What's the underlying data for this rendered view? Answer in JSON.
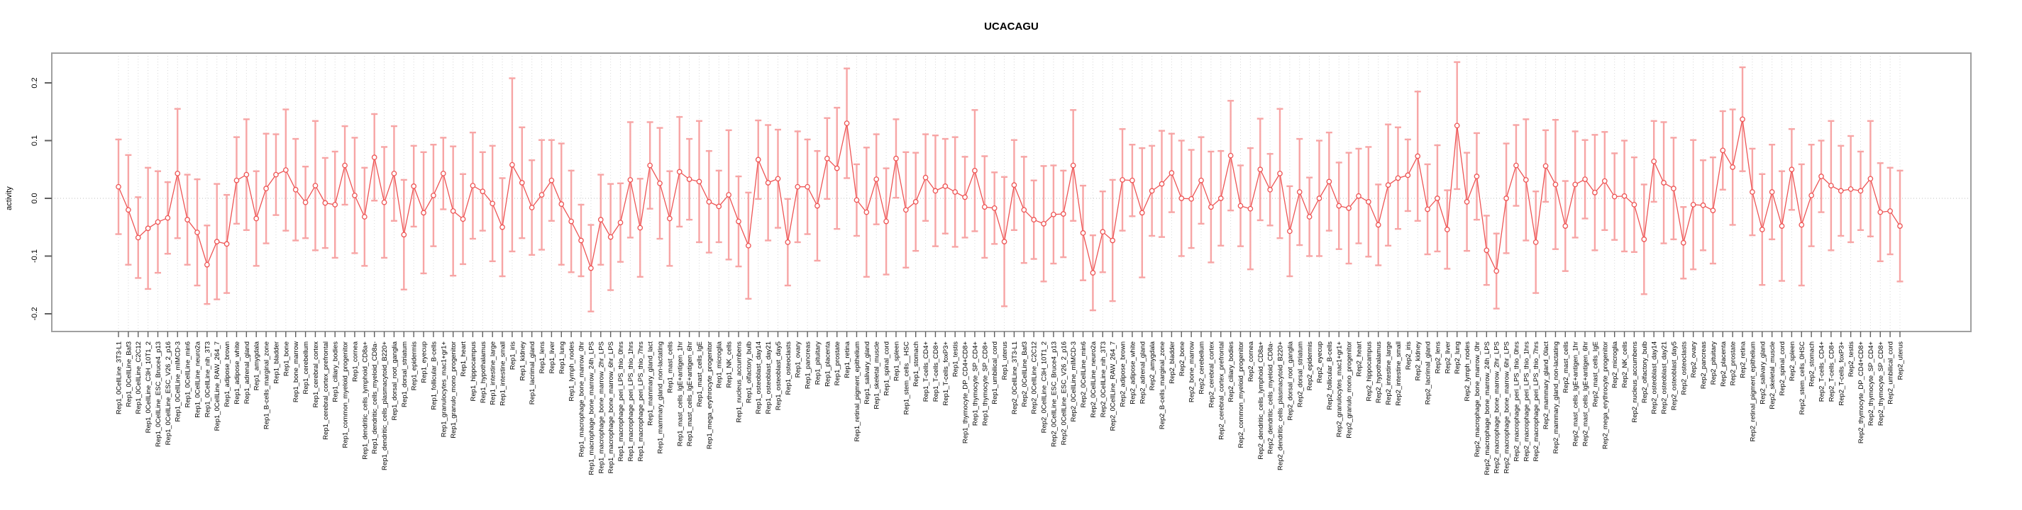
{
  "title": "UCACAGU",
  "ylabel": "activity",
  "colors": {
    "error_bar": "#f7a5a5",
    "mean_line": "#ee5454",
    "point_stroke": "#ee5454",
    "grid": "#d8d8d8",
    "zero_line": "#bdbdbd",
    "box_border": "#a0a0a0",
    "tick": "#606060",
    "label_text": "#000000",
    "title_text": "#000000",
    "background": "#ffffff"
  },
  "chart_data": {
    "type": "line",
    "subtype": "points-with-error-bars",
    "title": "UCACAGU",
    "xlabel": "",
    "ylabel": "activity",
    "ylim": [
      -0.25,
      0.25
    ],
    "yticks": [
      0.2,
      0.1,
      0.0,
      -0.1,
      -0.2
    ],
    "grid": "vertical dotted gridline per category; dotted horizontal line at 0",
    "legend_position": "none",
    "categories": [
      "Rep1_0CellLine_3T3-L1",
      "Rep1_0CellLine_Baf3",
      "Rep1_0CellLine_C2C12",
      "Rep1_0CellLine_C3H_10T1_2",
      "Rep1_0CellLine_ESC_Bruce4_p13",
      "Rep1_0CellLine_ESC_V26_2_p16",
      "Rep1_0CellLine_mIMCD-3",
      "Rep1_0CellLine_min6",
      "Rep1_0CellLine_neuro2a",
      "Rep1_0CellLine_nih_3T3",
      "Rep1_0CellLine_RAW_264_7",
      "Rep1_adipose_brown",
      "Rep1_adipose_white",
      "Rep1_adrenal_gland",
      "Rep1_amygdala",
      "Rep1_B-cells_marginal_zone",
      "Rep1_bladder",
      "Rep1_bone",
      "Rep1_bone_marrow",
      "Rep1_cerebellum",
      "Rep1_cerebral_cortex",
      "Rep1_cerebral_cortex_prefrontal",
      "Rep1_ciliary_bodies",
      "Rep1_common_myeloid_progenitor",
      "Rep1_cornea",
      "Rep1_dendritic_cells_lymphoid_CD8a+",
      "Rep1_dendritic_cells_myeloid_CD8a-",
      "Rep1_dendritic_cells_plasmacytoid_B220+",
      "Rep1_dorsal_root_ganglia",
      "Rep1_dorsal_striatum",
      "Rep1_epidermis",
      "Rep1_eyecup",
      "Rep1_follicular_B-cells",
      "Rep1_granulocytes_mac1+gr1+",
      "Rep1_granulo_mono_progenitor",
      "Rep1_heart",
      "Rep1_hippocampus",
      "Rep1_hypothalamus",
      "Rep1_intestine_large",
      "Rep1_intestine_small",
      "Rep1_iris",
      "Rep1_kidney",
      "Rep1_lacrimal_gland",
      "Rep1_lens",
      "Rep1_liver",
      "Rep1_lung",
      "Rep1_lymph_nodes",
      "Rep1_macrophage_bone_marrow_0hr",
      "Rep1_macrophage_bone_marrow_24h_LPS",
      "Rep1_macrophage_bone_marrow_2hr_LPS",
      "Rep1_macrophage_bone_marrow_6hr_LPS",
      "Rep1_macrophage_peri_LPS_thio_0hrs",
      "Rep1_macrophage_peri_LPS_thio_1hrs",
      "Rep1_macrophage_peri_LPS_thio_7hrs",
      "Rep1_mammary_gland_lact",
      "Rep1_mammary_gland_non-lactating",
      "Rep1_mast_cells",
      "Rep1_mast_cells_IgE+antigen_1hr",
      "Rep1_mast_cells_IgE+antigen_6hr",
      "Rep1_mast_cells_IgE",
      "Rep1_mega_erythrocyte_progenitor",
      "Rep1_microglia",
      "Rep1_NK_cells",
      "Rep1_nucleus_accumbens",
      "Rep1_olfactory_bulb",
      "Rep1_osteoblast_day14",
      "Rep1_osteoblast_day21",
      "Rep1_osteoblast_day5",
      "Rep1_osteoclasts",
      "Rep1_ovary",
      "Rep1_pancreas",
      "Rep1_pituitary",
      "Rep1_placenta",
      "Rep1_prostate",
      "Rep1_retina",
      "Rep1_retinal_pigment_epithelium",
      "Rep1_salivary_gland",
      "Rep1_skeletal_muscle",
      "Rep1_spinal_cord",
      "Rep1_spleen",
      "Rep1_stem_cells__HSC",
      "Rep1_stomach",
      "Rep1_T-cells_CD4+",
      "Rep1_T-cells_CD8+",
      "Rep1_T-cells_foxP3+",
      "Rep1_testis",
      "Rep1_thymocyte_DP_CD4+CD8+",
      "Rep1_thymocyte_SP_CD4+",
      "Rep1_thymocyte_SP_CD8+",
      "Rep1_umbilical_cord",
      "Rep1_uterus",
      "Rep2_0CellLine_3T3-L1",
      "Rep2_0CellLine_Baf3",
      "Rep2_0CellLine_C2C12",
      "Rep2_0CellLine_C3H_10T1_2",
      "Rep2_0CellLine_ESC_Bruce4_p13",
      "Rep2_0CellLine_ESC_V26_2_p16",
      "Rep2_0CellLine_mIMCD-3",
      "Rep2_0CellLine_min6",
      "Rep2_0CellLine_neuro2a",
      "Rep2_0CellLine_nih_3T3",
      "Rep2_0CellLine_RAW_264_7",
      "Rep2_adipose_brown",
      "Rep2_adipose_white",
      "Rep2_adrenal_gland",
      "Rep2_amygdala",
      "Rep2_B-cells_marginal_zone",
      "Rep2_bladder",
      "Rep2_bone",
      "Rep2_bone_marrow",
      "Rep2_cerebellum",
      "Rep2_cerebral_cortex",
      "Rep2_cerebral_cortex_prefrontal",
      "Rep2_ciliary_bodies",
      "Rep2_common_myeloid_progenitor",
      "Rep2_cornea",
      "Rep2_dendritic_cells_lymphoid_CD8a+",
      "Rep2_dendritic_cells_myeloid_CD8a-",
      "Rep2_dendritic_cells_plasmacytoid_B220+",
      "Rep2_dorsal_root_ganglia",
      "Rep2_dorsal_striatum",
      "Rep2_epidermis",
      "Rep2_eyecup",
      "Rep2_follicular_B-cells",
      "Rep2_granulocytes_mac1+gr1+",
      "Rep2_granulo_mono_progenitor",
      "Rep2_heart",
      "Rep2_hippocampus",
      "Rep2_hypothalamus",
      "Rep2_intestine_large",
      "Rep2_intestine_small",
      "Rep2_iris",
      "Rep2_kidney",
      "Rep2_lacrimal_gland",
      "Rep2_lens",
      "Rep2_liver",
      "Rep2_lung",
      "Rep2_lymph_nodes",
      "Rep2_macrophage_bone_marrow_0hr",
      "Rep2_macrophage_bone_marrow_24h_LPS",
      "Rep2_macrophage_bone_marrow_2hr_LPS",
      "Rep2_macrophage_bone_marrow_6hr_LPS",
      "Rep2_macrophage_peri_LPS_thio_0hrs",
      "Rep2_macrophage_peri_LPS_thio_1hrs",
      "Rep2_macrophage_peri_LPS_thio_7hrs",
      "Rep2_mammary_gland_0lact",
      "Rep2_mammary_gland_non-lactating",
      "Rep2_mast_cells",
      "Rep2_mast_cells_IgE+antigen_1hr",
      "Rep2_mast_cells_IgE+antigen_6hr",
      "Rep2_mast_cells_IgE",
      "Rep2_mega_erythrocyte_progenitor",
      "Rep2_microglia",
      "Rep2_NK_cells",
      "Rep2_nucleus_accumbens",
      "Rep2_olfactory_bulb",
      "Rep2_osteoblast_day14",
      "Rep2_osteoblast_day21",
      "Rep2_osteoblast_day5",
      "Rep2_osteoclasts",
      "Rep2_ovary",
      "Rep2_pancreas",
      "Rep2_pituitary",
      "Rep2_placenta",
      "Rep2_prostate",
      "Rep2_retina",
      "Rep2_retinal_pigment_epithelium",
      "Rep2_salivary_gland",
      "Rep2_skeletal_muscle",
      "Rep2_spinal_cord",
      "Rep2_spleen",
      "Rep2_stem_cells_0HSC",
      "Rep2_stomach",
      "Rep2_T-cells_CD4+",
      "Rep2_T-cells_CD8+",
      "Rep2_T-cells_foxP3+",
      "Rep2_testis",
      "Rep2_thymocyte_DP_CD4+CD8+",
      "Rep2_thymocyte_SP_CD4+",
      "Rep2_thymocyte_SP_CD8+",
      "Rep2_umbilical_cord",
      "Rep2_uterus"
    ],
    "series": [
      {
        "name": "activity",
        "values": [
          0.02,
          -0.02,
          -0.068,
          -0.052,
          -0.041,
          -0.034,
          0.043,
          -0.037,
          -0.059,
          -0.115,
          -0.075,
          -0.079,
          0.031,
          0.041,
          -0.035,
          0.017,
          0.041,
          0.049,
          0.015,
          -0.007,
          0.022,
          -0.008,
          -0.011,
          0.057,
          0.005,
          -0.032,
          0.071,
          -0.007,
          0.043,
          -0.063,
          0.021,
          -0.025,
          0.005,
          0.043,
          -0.022,
          -0.036,
          0.022,
          0.012,
          -0.009,
          -0.05,
          0.058,
          0.027,
          -0.016,
          0.006,
          0.031,
          -0.01,
          -0.04,
          -0.073,
          -0.121,
          -0.037,
          -0.067,
          -0.042,
          0.032,
          -0.051,
          0.057,
          0.026,
          -0.035,
          0.046,
          0.033,
          0.029,
          -0.006,
          -0.014,
          0.006,
          -0.04,
          -0.082,
          0.067,
          0.027,
          0.034,
          -0.076,
          0.02,
          0.02,
          -0.013,
          0.069,
          0.052,
          0.13,
          -0.003,
          -0.024,
          0.033,
          -0.04,
          0.069,
          -0.02,
          -0.006,
          0.036,
          0.013,
          0.021,
          0.011,
          0.002,
          0.048,
          -0.015,
          -0.017,
          -0.075,
          0.023,
          -0.02,
          -0.037,
          -0.044,
          -0.028,
          -0.027,
          0.057,
          -0.06,
          -0.129,
          -0.058,
          -0.073,
          0.032,
          0.031,
          -0.025,
          0.013,
          0.025,
          0.044,
          0.0,
          -0.001,
          0.031,
          -0.015,
          0.0,
          0.074,
          -0.013,
          -0.018,
          0.05,
          0.015,
          0.043,
          -0.057,
          0.011,
          -0.032,
          0.0,
          0.029,
          -0.013,
          -0.017,
          0.004,
          -0.006,
          -0.046,
          0.023,
          0.035,
          0.04,
          0.073,
          -0.019,
          0.0,
          -0.054,
          0.126,
          -0.006,
          0.038,
          -0.09,
          -0.126,
          0.0,
          0.057,
          0.032,
          -0.076,
          0.056,
          0.024,
          -0.048,
          0.024,
          0.033,
          0.01,
          0.03,
          0.003,
          0.004,
          -0.011,
          -0.071,
          0.064,
          0.027,
          0.017,
          -0.077,
          -0.011,
          -0.012,
          -0.021,
          0.083,
          0.054,
          0.137,
          0.011,
          -0.054,
          0.011,
          -0.048,
          0.05,
          -0.046,
          0.005,
          0.038,
          0.022,
          0.013,
          0.016,
          0.013,
          0.034,
          -0.024,
          -0.022,
          -0.048
        ],
        "errors": [
          0.082,
          0.095,
          0.07,
          0.105,
          0.088,
          0.062,
          0.112,
          0.078,
          0.092,
          0.068,
          0.1,
          0.085,
          0.075,
          0.096,
          0.082,
          0.095,
          0.07,
          0.105,
          0.088,
          0.062,
          0.112,
          0.078,
          0.092,
          0.068,
          0.1,
          0.085,
          0.075,
          0.096,
          0.082,
          0.095,
          0.07,
          0.105,
          0.088,
          0.062,
          0.112,
          0.078,
          0.092,
          0.068,
          0.1,
          0.085,
          0.15,
          0.096,
          0.082,
          0.095,
          0.07,
          0.105,
          0.088,
          0.062,
          0.075,
          0.078,
          0.092,
          0.068,
          0.1,
          0.085,
          0.075,
          0.096,
          0.082,
          0.095,
          0.07,
          0.105,
          0.088,
          0.062,
          0.112,
          0.078,
          0.092,
          0.068,
          0.1,
          0.085,
          0.075,
          0.096,
          0.082,
          0.095,
          0.07,
          0.105,
          0.095,
          0.062,
          0.112,
          0.078,
          0.092,
          0.068,
          0.1,
          0.085,
          0.075,
          0.096,
          0.082,
          0.095,
          0.07,
          0.105,
          0.088,
          0.062,
          0.112,
          0.078,
          0.092,
          0.068,
          0.1,
          0.085,
          0.075,
          0.096,
          0.082,
          0.065,
          0.07,
          0.105,
          0.088,
          0.062,
          0.112,
          0.078,
          0.092,
          0.068,
          0.1,
          0.085,
          0.075,
          0.096,
          0.082,
          0.095,
          0.07,
          0.105,
          0.088,
          0.062,
          0.112,
          0.078,
          0.092,
          0.068,
          0.1,
          0.085,
          0.075,
          0.096,
          0.082,
          0.095,
          0.07,
          0.105,
          0.088,
          0.062,
          0.112,
          0.078,
          0.092,
          0.068,
          0.11,
          0.085,
          0.075,
          0.06,
          0.065,
          0.095,
          0.07,
          0.105,
          0.088,
          0.062,
          0.112,
          0.078,
          0.092,
          0.068,
          0.1,
          0.085,
          0.075,
          0.096,
          0.082,
          0.095,
          0.07,
          0.105,
          0.088,
          0.062,
          0.112,
          0.078,
          0.092,
          0.068,
          0.1,
          0.09,
          0.075,
          0.096,
          0.082,
          0.095,
          0.07,
          0.105,
          0.088,
          0.062,
          0.112,
          0.078,
          0.092,
          0.068,
          0.1,
          0.085,
          0.075,
          0.096
        ]
      }
    ]
  }
}
